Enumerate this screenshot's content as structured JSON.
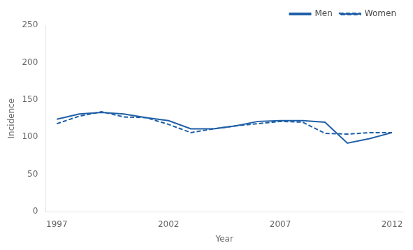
{
  "chart_data": {
    "type": "line",
    "x": [
      1997,
      1998,
      1999,
      2000,
      2001,
      2002,
      2003,
      2004,
      2005,
      2006,
      2007,
      2008,
      2009,
      2010,
      2011,
      2012
    ],
    "series": [
      {
        "name": "Men",
        "color": "#1f5fa6",
        "line_style": "solid",
        "values": [
          124,
          131,
          133,
          131,
          126,
          122,
          111,
          111,
          115,
          121,
          122,
          122,
          120,
          92,
          98,
          106
        ]
      },
      {
        "name": "Women",
        "color": "#1f5fa6",
        "line_style": "dashed",
        "values": [
          118,
          128,
          134,
          127,
          126,
          117,
          106,
          111,
          115,
          118,
          121,
          120,
          105,
          104,
          106,
          106
        ]
      }
    ],
    "xlabel": "Year",
    "ylabel": "Incidence",
    "xlim": [
      1996.5,
      2012.5
    ],
    "xticks": [
      1997,
      2002,
      2007,
      2012
    ],
    "ylim": [
      0,
      250
    ],
    "yticks": [
      0,
      50,
      100,
      150,
      200,
      250
    ],
    "grid": false,
    "legend": "upper right"
  }
}
